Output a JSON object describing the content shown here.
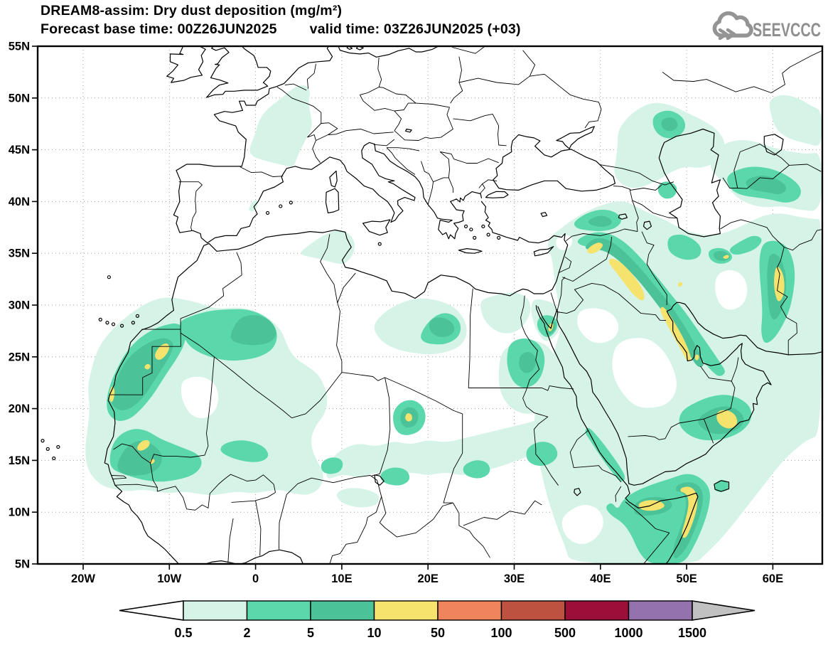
{
  "header": {
    "model_title": "DREAM8-assim: Dry dust deposition (mg/m²)",
    "base_time_text": "Forecast base time: 00Z26JUN2025",
    "valid_time_text": "valid time: 03Z26JUN2025 (+03)",
    "logo_text": "SEEVCCC"
  },
  "axes": {
    "x_tick_labels": [
      "20W",
      "10W",
      "0",
      "10E",
      "20E",
      "30E",
      "40E",
      "50E",
      "60E"
    ],
    "y_tick_labels": [
      "55N",
      "50N",
      "45N",
      "40N",
      "35N",
      "30N",
      "25N",
      "20N",
      "15N",
      "10N",
      "5N"
    ]
  },
  "colorbar": {
    "tick_labels": [
      "0.5",
      "2",
      "5",
      "10",
      "50",
      "100",
      "500",
      "1000",
      "1500"
    ],
    "cell_colors": [
      "#d6f3e8",
      "#5ad8ac",
      "#4cc298",
      "#f6e36e",
      "#f0845c",
      "#bd5240",
      "#9b0f38",
      "#9472ae"
    ],
    "under_arrow_color": "#ffffff",
    "over_arrow_color": "#c2c1c1",
    "outline_color": "#000000"
  },
  "chart_data": {
    "type": "filled_contour_map",
    "title": "DREAM8-assim: Dry dust deposition (mg/m²)",
    "model": "DREAM8-assim",
    "variable": "Dry dust deposition",
    "units": "mg/m²",
    "forecast_base_time": "00Z26JUN2025",
    "valid_time": "03Z26JUN2025",
    "lead_hours": "+03",
    "map_extent": {
      "lon_min": -24.6,
      "lon_max": 65.8,
      "lat_min": 5,
      "lat_max": 55
    },
    "x_axis_ticks_deg": [
      -20,
      -10,
      0,
      10,
      20,
      30,
      40,
      50,
      60
    ],
    "y_axis_ticks_deg": [
      55,
      50,
      45,
      40,
      35,
      30,
      25,
      20,
      15,
      10,
      5
    ],
    "grid": {
      "x_interval_deg": 10,
      "y_interval_deg": 5,
      "style": "dotted"
    },
    "contour_levels_mg_m2": [
      0.5,
      2,
      5,
      10,
      50,
      100,
      500,
      1000,
      1500
    ],
    "level_fill_colors": [
      "#d6f3e8",
      "#5ad8ac",
      "#4cc298",
      "#f6e36e",
      "#f0845c",
      "#bd5240",
      "#9b0f38",
      "#9472ae"
    ],
    "legend_position": "bottom",
    "max_category_shown_mg_m2": "10-50",
    "notable_deposition_areas": [
      {
        "region": "Western Sahara / N Mauritania coast",
        "peak_level": "10-50"
      },
      {
        "region": "Senegal / SW Mali",
        "peak_level": "10-50"
      },
      {
        "region": "W Algeria interior",
        "peak_level": "5-10"
      },
      {
        "region": "E Libya interior",
        "peak_level": "2-5"
      },
      {
        "region": "NE Chad",
        "peak_level": "10-50"
      },
      {
        "region": "S Egypt / N Sudan",
        "peak_level": "2-5"
      },
      {
        "region": "Sinai / Gulf of Suez",
        "peak_level": "10-50"
      },
      {
        "region": "NE Syria / Iraq Mesopotamia band",
        "peak_level": "10-50"
      },
      {
        "region": "Persian Gulf west coast (Kuwait-Qatar)",
        "peak_level": "10-50"
      },
      {
        "region": "Eastern Iran (Sistan)",
        "peak_level": "10-50"
      },
      {
        "region": "S Oman / E Yemen",
        "peak_level": "10-50"
      },
      {
        "region": "N Somalia / Gulf of Aden coast",
        "peak_level": "10-50"
      },
      {
        "region": "Central France",
        "peak_level": "0.5-2"
      },
      {
        "region": "NW Caspian / Turkmenistan",
        "peak_level": "5-10"
      }
    ]
  }
}
